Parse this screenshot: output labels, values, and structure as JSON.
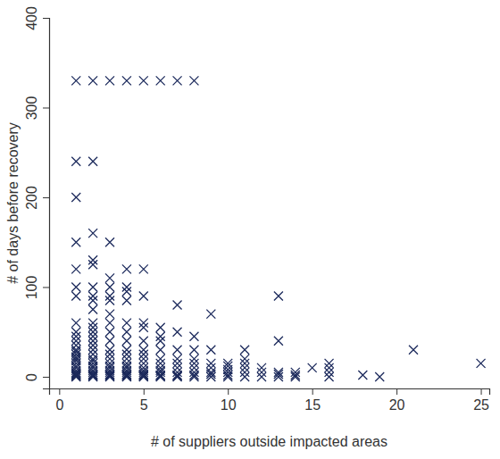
{
  "chart_data": {
    "type": "scatter",
    "x_label": "# of suppliers outside impacted areas",
    "y_label": "# of days before recovery",
    "marker": "x",
    "color": "#1c2a5c",
    "grid": false,
    "xlim": [
      -0.6,
      25.5
    ],
    "ylim": [
      -13,
      400
    ],
    "xticks": [
      0,
      5,
      10,
      15,
      20,
      25
    ],
    "yticks": [
      0,
      100,
      200,
      300,
      400
    ],
    "x": [
      1,
      1,
      1,
      1,
      1,
      1,
      1,
      1,
      1,
      1,
      1,
      1,
      1,
      1,
      1,
      1,
      1,
      1,
      1,
      1,
      1,
      1,
      1,
      1,
      1,
      1,
      1,
      1,
      2,
      2,
      2,
      2,
      2,
      2,
      2,
      2,
      2,
      2,
      2,
      2,
      2,
      2,
      2,
      2,
      2,
      2,
      2,
      2,
      2,
      2,
      2,
      2,
      2,
      2,
      2,
      2,
      3,
      3,
      3,
      3,
      3,
      3,
      3,
      3,
      3,
      3,
      3,
      3,
      3,
      3,
      3,
      3,
      3,
      3,
      3,
      3,
      3,
      3,
      4,
      4,
      4,
      4,
      4,
      4,
      4,
      4,
      4,
      4,
      4,
      4,
      4,
      4,
      4,
      4,
      4,
      4,
      4,
      4,
      5,
      5,
      5,
      5,
      5,
      5,
      5,
      5,
      5,
      5,
      5,
      5,
      5,
      5,
      5,
      5,
      5,
      6,
      6,
      6,
      6,
      6,
      6,
      6,
      6,
      6,
      6,
      6,
      6,
      6,
      7,
      7,
      7,
      7,
      7,
      7,
      7,
      7,
      7,
      7,
      7,
      8,
      8,
      8,
      8,
      8,
      8,
      8,
      8,
      8,
      9,
      9,
      9,
      9,
      9,
      9,
      9,
      10,
      10,
      10,
      10,
      10,
      10,
      11,
      11,
      11,
      11,
      11,
      11,
      12,
      12,
      12,
      13,
      13,
      13,
      13,
      13,
      14,
      14,
      14,
      15,
      16,
      16,
      16,
      16,
      18,
      19,
      21,
      25
    ],
    "y": [
      0,
      1,
      2,
      3,
      4,
      5,
      7,
      10,
      12,
      15,
      18,
      20,
      22,
      25,
      28,
      30,
      35,
      40,
      45,
      50,
      60,
      90,
      100,
      120,
      150,
      200,
      240,
      330,
      0,
      1,
      2,
      3,
      5,
      7,
      10,
      12,
      15,
      18,
      20,
      25,
      30,
      35,
      40,
      45,
      50,
      55,
      60,
      75,
      85,
      90,
      100,
      125,
      130,
      160,
      240,
      330,
      0,
      1,
      2,
      3,
      5,
      7,
      10,
      12,
      15,
      20,
      25,
      30,
      40,
      50,
      60,
      70,
      85,
      90,
      100,
      110,
      150,
      330,
      0,
      1,
      2,
      3,
      5,
      7,
      10,
      12,
      15,
      20,
      25,
      30,
      40,
      50,
      60,
      85,
      95,
      100,
      120,
      330,
      0,
      1,
      2,
      3,
      5,
      7,
      10,
      15,
      20,
      25,
      30,
      40,
      55,
      60,
      90,
      120,
      330,
      0,
      1,
      2,
      5,
      7,
      10,
      15,
      20,
      30,
      40,
      45,
      55,
      330,
      0,
      1,
      2,
      5,
      10,
      15,
      20,
      30,
      50,
      80,
      330,
      0,
      2,
      5,
      10,
      15,
      20,
      30,
      45,
      330,
      0,
      3,
      5,
      10,
      15,
      30,
      70,
      0,
      2,
      5,
      8,
      12,
      15,
      0,
      5,
      10,
      15,
      20,
      30,
      0,
      5,
      10,
      0,
      3,
      5,
      40,
      90,
      0,
      2,
      5,
      10,
      0,
      5,
      10,
      15,
      2,
      0,
      30,
      15
    ]
  }
}
